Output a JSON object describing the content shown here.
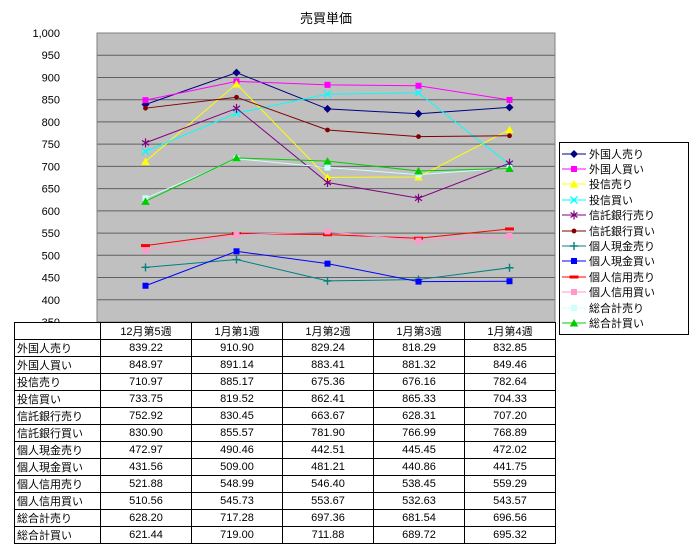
{
  "chart_data": {
    "type": "line",
    "title": "売買単価",
    "categories": [
      "12月第5週",
      "1月第1週",
      "1月第2週",
      "1月第3週",
      "1月第4週"
    ],
    "series": [
      {
        "name": "外国人売り",
        "color": "#000080",
        "marker": "diamond",
        "values": [
          839.22,
          910.9,
          829.24,
          818.29,
          832.85
        ]
      },
      {
        "name": "外国人買い",
        "color": "#FF00FF",
        "marker": "square",
        "values": [
          848.97,
          891.14,
          883.41,
          881.32,
          849.46
        ]
      },
      {
        "name": "投信売り",
        "color": "#FFFF00",
        "marker": "triangle",
        "values": [
          710.97,
          885.17,
          675.36,
          676.16,
          782.64
        ]
      },
      {
        "name": "投信買い",
        "color": "#00FFFF",
        "marker": "x",
        "values": [
          733.75,
          819.52,
          862.41,
          865.33,
          704.33
        ]
      },
      {
        "name": "信託銀行売り",
        "color": "#800080",
        "marker": "star",
        "values": [
          752.92,
          830.45,
          663.67,
          628.31,
          707.2
        ]
      },
      {
        "name": "信託銀行買い",
        "color": "#800000",
        "marker": "circle",
        "values": [
          830.9,
          855.57,
          781.9,
          766.99,
          768.89
        ]
      },
      {
        "name": "個人現金売り",
        "color": "#008080",
        "marker": "plus",
        "values": [
          472.97,
          490.46,
          442.51,
          445.45,
          472.02
        ]
      },
      {
        "name": "個人現金買い",
        "color": "#0000FF",
        "marker": "square",
        "values": [
          431.56,
          509.0,
          481.21,
          440.86,
          441.75
        ]
      },
      {
        "name": "個人信用売り",
        "color": "#FF0000",
        "marker": "dash",
        "values": [
          521.88,
          548.99,
          546.4,
          538.45,
          559.29
        ]
      },
      {
        "name": "個人信用買い",
        "color": "#FF99CC",
        "marker": "square",
        "values": [
          510.56,
          545.73,
          553.67,
          532.63,
          543.57
        ]
      },
      {
        "name": "総合計売り",
        "color": "#CCFFFF",
        "marker": "square",
        "values": [
          628.2,
          717.28,
          697.36,
          681.54,
          696.56
        ]
      },
      {
        "name": "総合計買い",
        "color": "#00CC00",
        "marker": "triangle",
        "values": [
          621.44,
          719.0,
          711.88,
          689.72,
          695.32
        ]
      }
    ],
    "ylim": [
      350,
      1000
    ],
    "ytick_step": 50,
    "ytick_labels": [
      "350",
      "400",
      "450",
      "500",
      "550",
      "600",
      "650",
      "700",
      "750",
      "800",
      "850",
      "900",
      "950",
      "1,000"
    ],
    "grid": true,
    "legend_position": "right",
    "plot_bg": "#C0C0C0",
    "gridline_color": "#606060",
    "plot_border_color": "#808080"
  }
}
